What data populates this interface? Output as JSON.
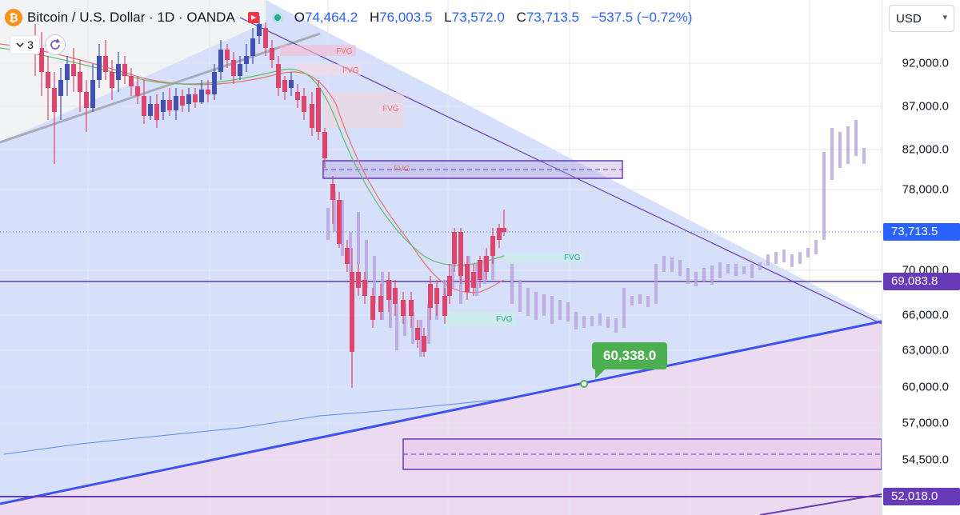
{
  "legend": {
    "symbol_title": "Bitcoin / U.S. Dollar · 1D · OANDA",
    "coin_glyph": "₿",
    "open_key": "O",
    "open": "74,464.2",
    "high_key": "H",
    "high": "76,003.5",
    "low_key": "L",
    "low": "73,572.0",
    "close_key": "C",
    "close": "73,713.5",
    "change": "−537.5 (−0.72%)",
    "flag_icon": "flag-icon",
    "status_icon": "market-status-icon"
  },
  "indicators": {
    "count": "3",
    "toggle_icon": "chevron-down-icon",
    "refresh_icon": "refresh-icon"
  },
  "currency": {
    "value": "USD"
  },
  "price_scale": {
    "ticks": [
      "92,000.0",
      "87,000.0",
      "82,000.0",
      "78,000.0",
      "70,000.0",
      "66,000.0",
      "63,000.0",
      "60,000.0",
      "57,000.0",
      "54,500.0"
    ],
    "badges": [
      {
        "label": "73,713.5",
        "color": "#2962ff"
      },
      {
        "label": "69,083.8",
        "color": "#673ab7"
      },
      {
        "label": "52,018.0",
        "color": "#673ab7"
      }
    ]
  },
  "annotations": {
    "callout_price": "60,338.0",
    "fvg_label": "FVG"
  },
  "colors": {
    "bull": "#089981",
    "bear": "#f23645",
    "ghost": "#b39ddb",
    "upper_zone": "#d6e0fb",
    "lower_zone": "#ecdaf0",
    "accent": "#2962ff",
    "purple": "#673ab7"
  },
  "chart_data": {
    "type": "candlestick",
    "symbol": "Bitcoin / U.S. Dollar",
    "interval": "1D",
    "exchange": "OANDA",
    "last_price": 73713.5,
    "horizontal_levels": [
      73713.5,
      69083.8,
      52018.0
    ],
    "y_ticks": [
      92000,
      87000,
      82000,
      78000,
      70000,
      66000,
      63000,
      60000,
      57000,
      54500
    ],
    "trendline_touch": 60338.0
  }
}
